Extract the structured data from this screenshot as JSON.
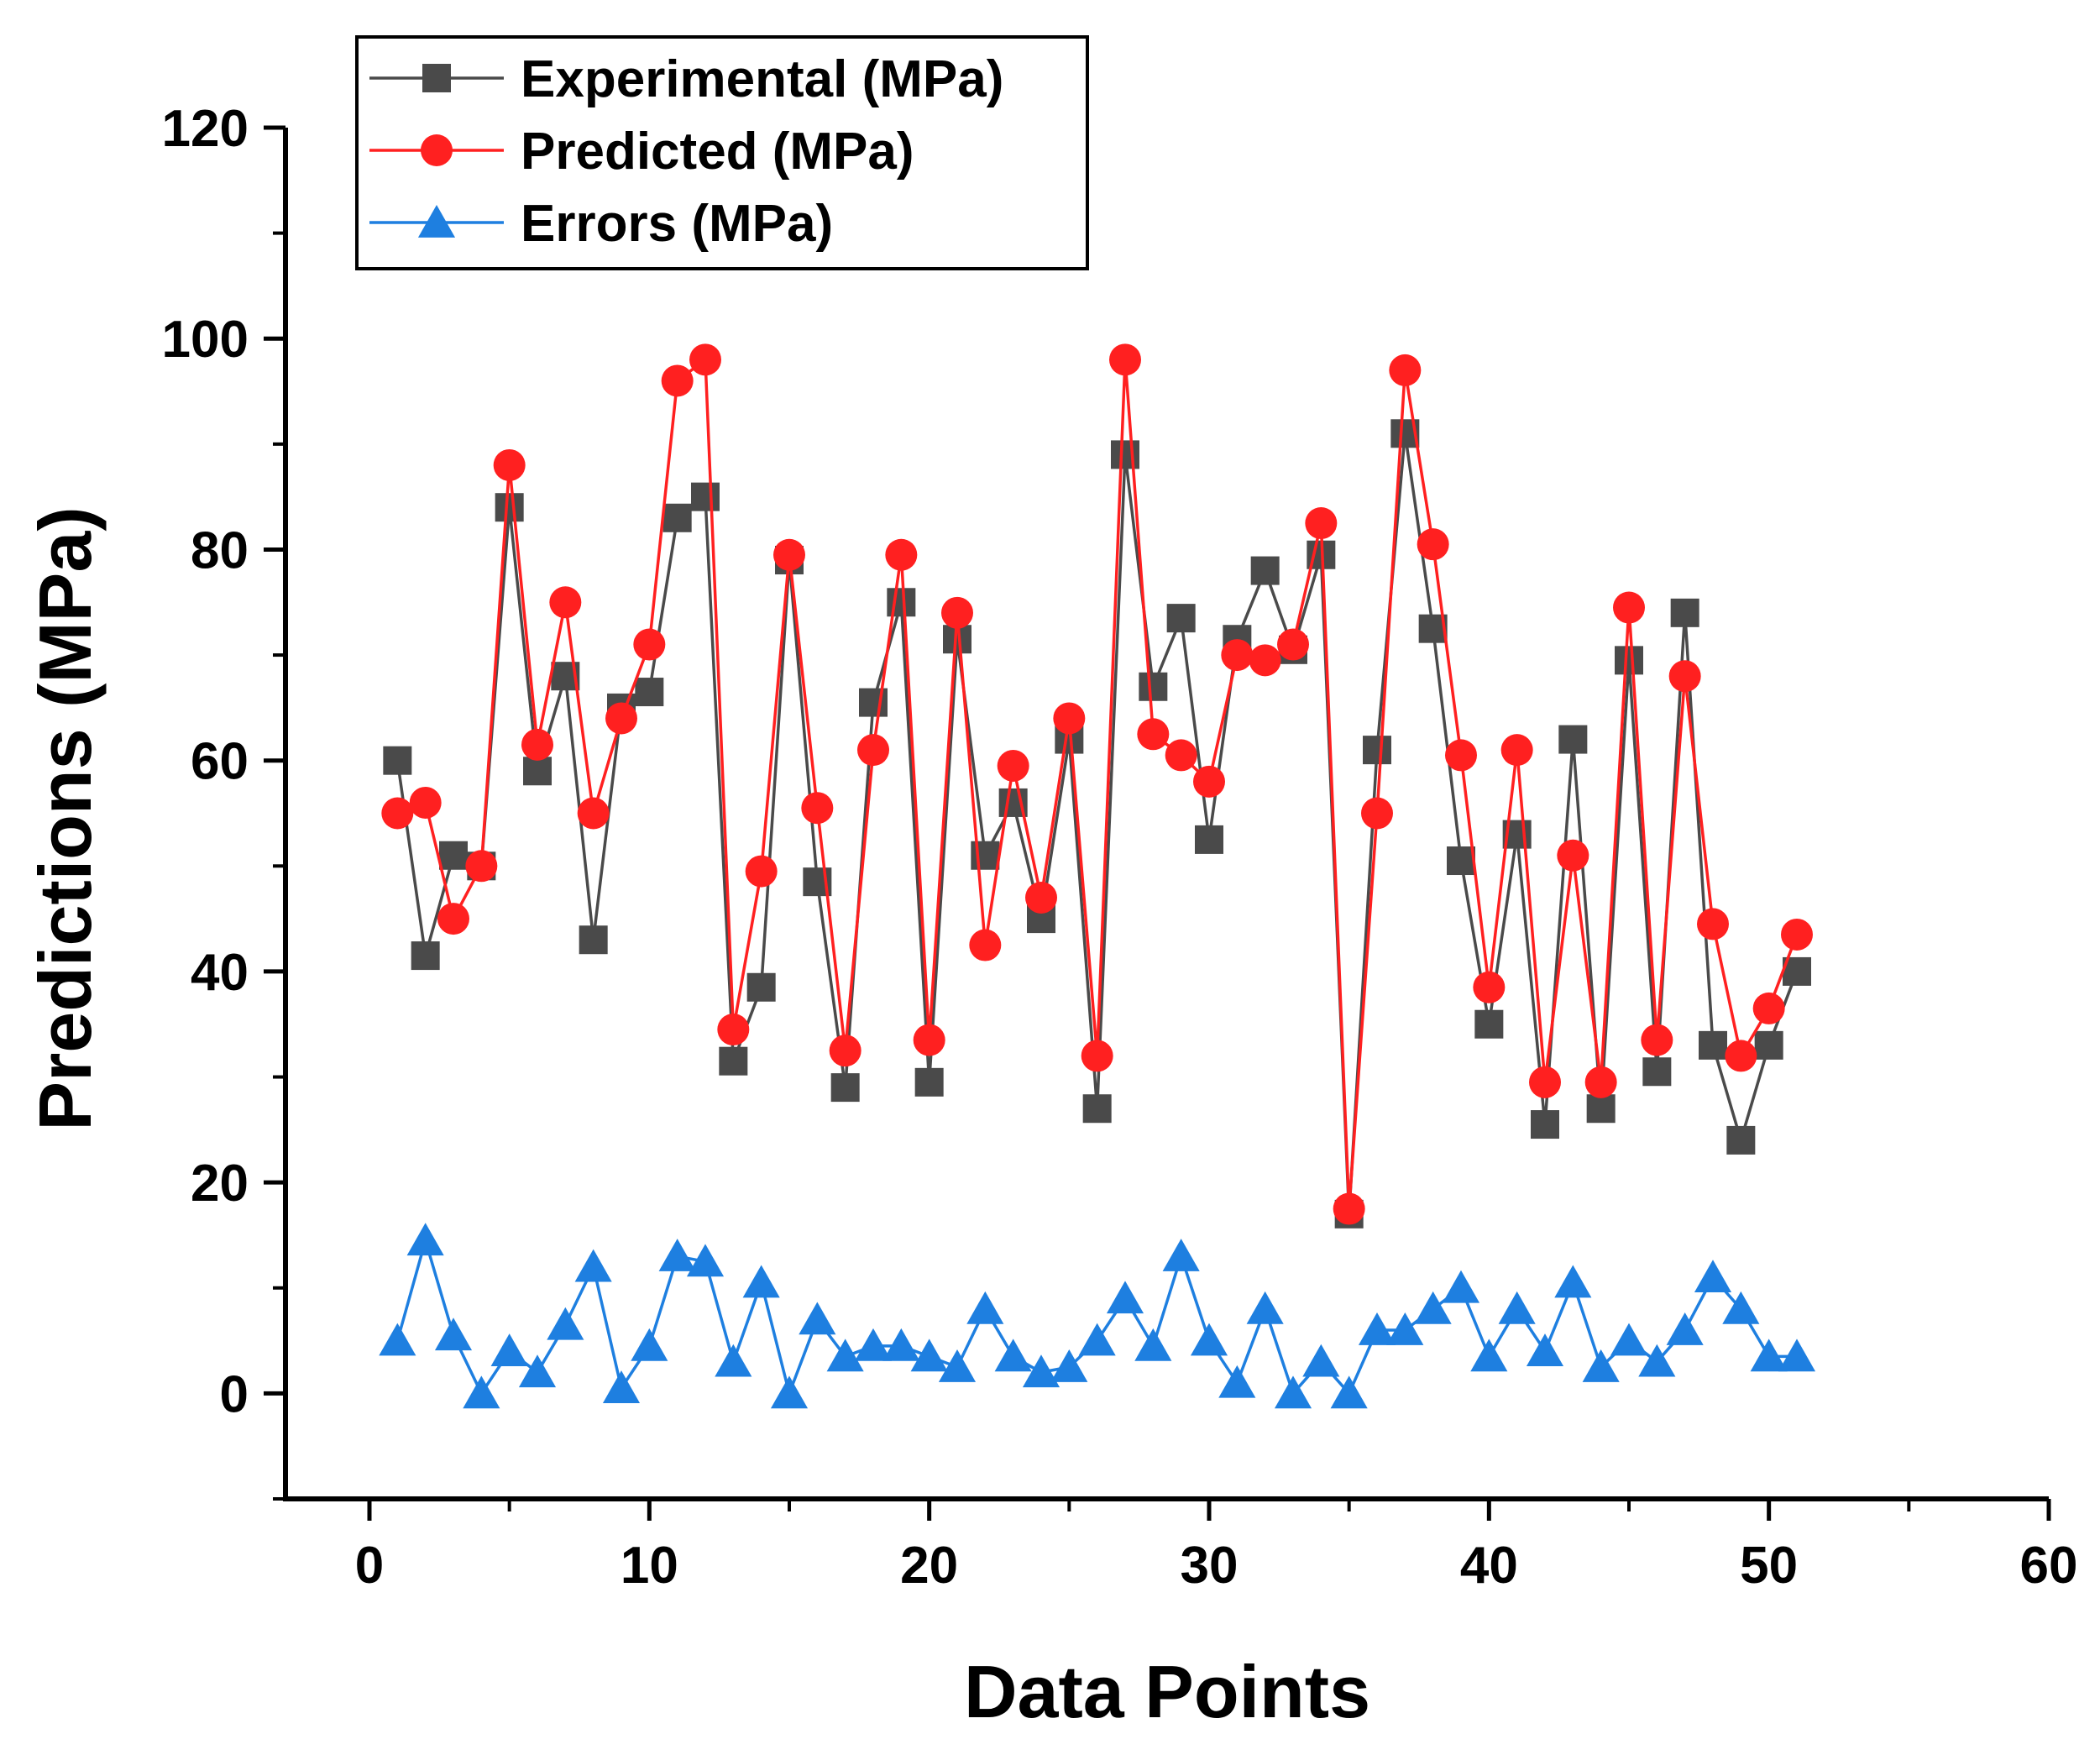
{
  "chart_data": {
    "type": "line",
    "title": "",
    "xlabel": "Data Points",
    "ylabel": "Predictions (MPa)",
    "xlim": [
      -3,
      60
    ],
    "ylim": [
      -10,
      120
    ],
    "xticks": [
      0,
      10,
      20,
      30,
      40,
      50,
      60
    ],
    "yticks": [
      0,
      20,
      40,
      60,
      80,
      100,
      120
    ],
    "xtick_labels": [
      "0",
      "10",
      "20",
      "30",
      "40",
      "50",
      "60"
    ],
    "ytick_labels": [
      "0",
      "20",
      "40",
      "60",
      "80",
      "100",
      "120"
    ],
    "legend_position": "top-left",
    "x": [
      1,
      2,
      3,
      4,
      5,
      6,
      7,
      8,
      9,
      10,
      11,
      12,
      13,
      14,
      15,
      16,
      17,
      18,
      19,
      20,
      21,
      22,
      23,
      24,
      25,
      26,
      27,
      28,
      29,
      30,
      31,
      32,
      33,
      34,
      35,
      36,
      37,
      38,
      39,
      40,
      41,
      42,
      43,
      44,
      45,
      46,
      47,
      48,
      49,
      50,
      51
    ],
    "series": [
      {
        "name": "Experimental (MPa)",
        "color": "#4a4a4a",
        "marker": "square",
        "values": [
          60,
          41.5,
          51,
          50,
          84,
          59,
          68,
          43,
          65,
          66.5,
          83,
          85,
          31.5,
          38.5,
          79,
          48.5,
          29,
          65.5,
          75,
          29.5,
          71.5,
          51,
          56,
          45,
          62,
          27,
          89,
          67,
          73.5,
          52.5,
          71.5,
          78,
          70.5,
          79.5,
          17,
          61,
          91,
          72.5,
          50.5,
          35,
          53,
          25.5,
          62,
          27,
          69.5,
          30.5,
          74,
          33,
          24,
          33,
          40
        ]
      },
      {
        "name": "Predicted (MPa)",
        "color": "#ff2020",
        "marker": "circle",
        "values": [
          55,
          56,
          45,
          50,
          88,
          61.5,
          75,
          55,
          64,
          71,
          96,
          98,
          34.5,
          49.5,
          79.5,
          55.5,
          32.5,
          61,
          79.5,
          33.5,
          74,
          42.5,
          59.5,
          47,
          64,
          32,
          98,
          62.5,
          60.5,
          58,
          70,
          69.5,
          71,
          82.5,
          17.5,
          55,
          97,
          80.5,
          60.5,
          38.5,
          61,
          29.5,
          51,
          29.5,
          74.5,
          33.5,
          68,
          44.5,
          32,
          36.5,
          43.5
        ]
      },
      {
        "name": "Errors (MPa)",
        "color": "#1e7fe0",
        "marker": "triangle",
        "values": [
          5,
          14.5,
          5.5,
          0,
          4,
          2,
          6.5,
          12,
          0.5,
          4.5,
          13,
          12.5,
          3,
          10.5,
          0,
          7,
          3.5,
          4.5,
          4.5,
          3.5,
          2.5,
          8,
          3.5,
          2,
          2.5,
          5,
          9,
          4.5,
          13,
          5,
          1,
          8,
          0,
          3,
          0,
          6,
          6,
          8,
          10,
          3.5,
          8,
          4,
          10.5,
          2.5,
          5,
          3,
          6,
          11,
          8,
          3.5,
          3.5
        ]
      }
    ]
  }
}
